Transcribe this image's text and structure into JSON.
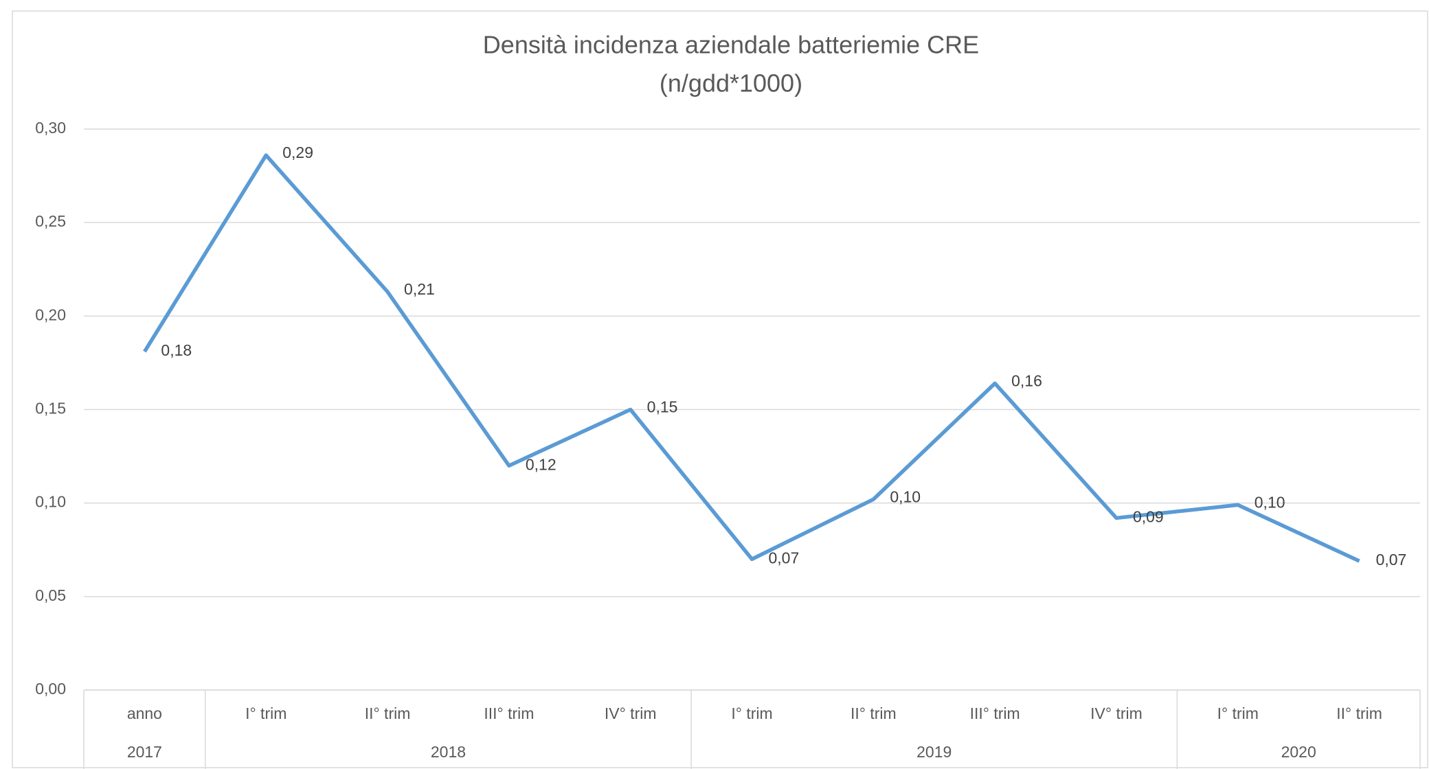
{
  "chart_data": {
    "type": "line",
    "title": [
      "Densità incidenza aziendale batteriemie CRE",
      "(n/gdd*1000)"
    ],
    "categories": [
      "anno",
      "I° trim",
      "II° trim",
      "III° trim",
      "IV° trim",
      "I° trim",
      "II° trim",
      "III° trim",
      "IV° trim",
      "I° trim",
      "II° trim"
    ],
    "groups": [
      {
        "label": "2017",
        "span": 1
      },
      {
        "label": "2018",
        "span": 4
      },
      {
        "label": "2019",
        "span": 4
      },
      {
        "label": "2020",
        "span": 2
      }
    ],
    "series": [
      {
        "color": "#5b9bd5",
        "values": [
          0.181,
          0.286,
          0.213,
          0.12,
          0.15,
          0.07,
          0.102,
          0.164,
          0.092,
          0.099,
          0.069
        ],
        "value_labels": [
          "0,18",
          "0,29",
          "0,21",
          "0,12",
          "0,15",
          "0,07",
          "0,10",
          "0,16",
          "0,09",
          "0,10",
          "0,07"
        ]
      }
    ],
    "ylim": [
      0,
      0.3
    ],
    "yticks": [
      {
        "value": 0,
        "label": "0,00"
      },
      {
        "value": 0.05,
        "label": "0,05"
      },
      {
        "value": 0.1,
        "label": "0,10"
      },
      {
        "value": 0.15,
        "label": "0,15"
      },
      {
        "value": 0.2,
        "label": "0,20"
      },
      {
        "value": 0.25,
        "label": "0,25"
      },
      {
        "value": 0.3,
        "label": "0,30"
      }
    ],
    "grid": true
  }
}
